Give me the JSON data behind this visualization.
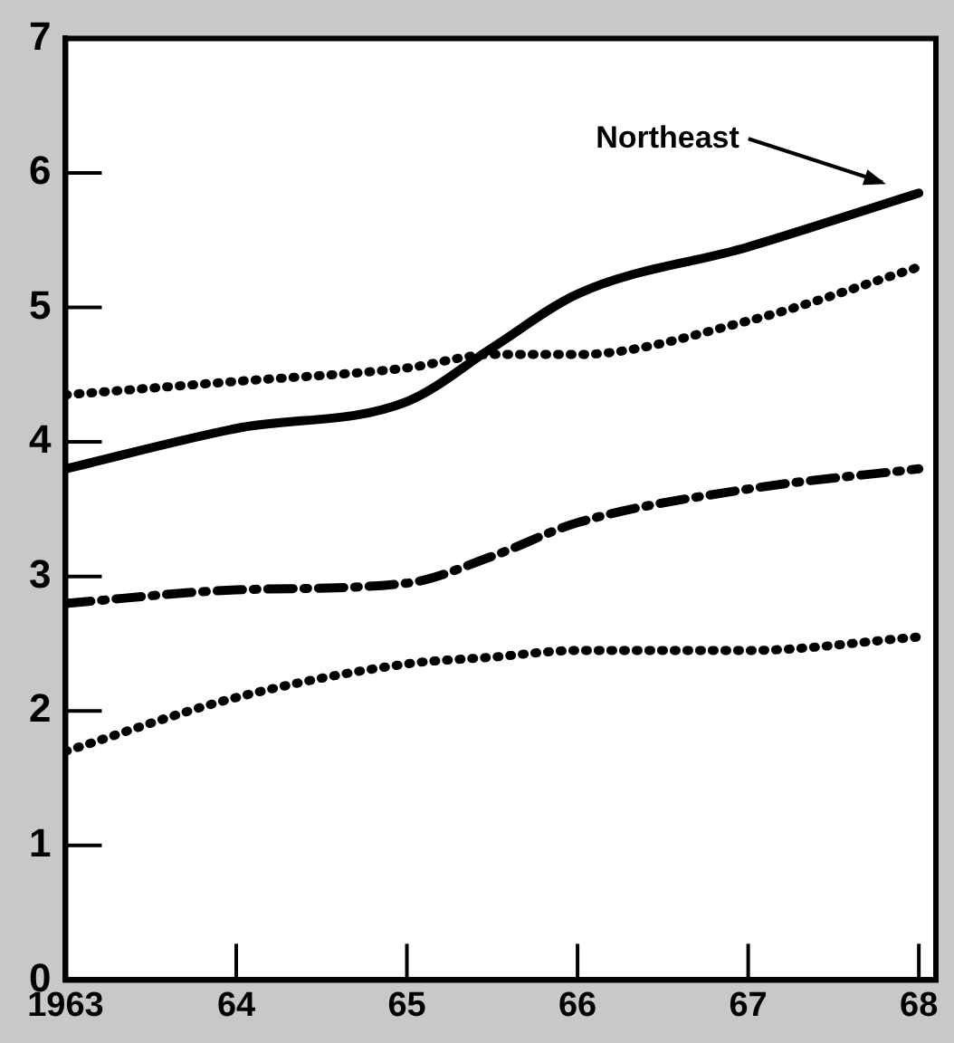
{
  "chart_data": {
    "type": "line",
    "x": [
      1963,
      1964,
      1965,
      1965.5,
      1966,
      1967,
      1968
    ],
    "series": [
      {
        "name": "Northeast",
        "color": "#000000",
        "line_style": "solid",
        "values": [
          3.8,
          4.1,
          4.3,
          4.7,
          5.1,
          5.45,
          5.85
        ]
      },
      {
        "color": "#000000",
        "line_style": "dotted",
        "values": [
          4.35,
          4.45,
          4.55,
          4.65,
          4.65,
          4.9,
          5.3
        ]
      },
      {
        "color": "#000000",
        "line_style": "dashed",
        "values": [
          2.8,
          2.9,
          2.95,
          3.15,
          3.4,
          3.65,
          3.8
        ]
      },
      {
        "color": "#000000",
        "line_style": "dotted",
        "values": [
          1.7,
          2.1,
          2.35,
          2.4,
          2.45,
          2.45,
          2.55
        ]
      }
    ],
    "xlim": [
      1963,
      1968.1
    ],
    "xticks": [
      1963,
      {
        "value": 1964,
        "label": "64"
      },
      {
        "value": 1965,
        "label": "65"
      },
      {
        "value": 1966,
        "label": "66"
      },
      {
        "value": 1967,
        "label": "67"
      },
      {
        "value": 1968,
        "label": "68"
      }
    ],
    "ylim": [
      0,
      7
    ],
    "yticks": [
      0,
      1,
      2,
      3,
      4,
      5,
      6,
      7
    ],
    "grid": false,
    "legend": false,
    "marker": "none"
  }
}
